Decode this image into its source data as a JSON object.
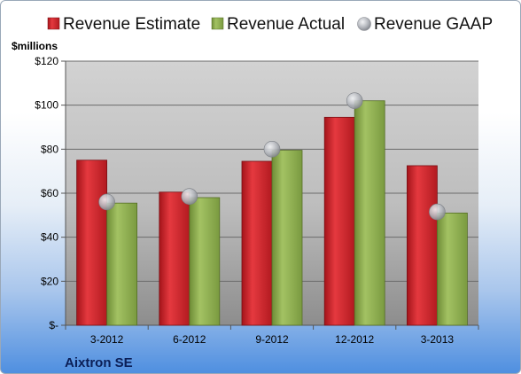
{
  "chart_data": {
    "type": "bar",
    "categories": [
      "3-2012",
      "6-2012",
      "9-2012",
      "12-2012",
      "3-2013"
    ],
    "series": [
      {
        "name": "Revenue Estimate",
        "kind": "bar",
        "color": "#d0232a",
        "values": [
          75,
          60.5,
          74.5,
          94.5,
          72.5
        ]
      },
      {
        "name": "Revenue Actual",
        "kind": "bar",
        "color": "#8fae4e",
        "values": [
          55.5,
          58,
          79.5,
          102,
          51
        ]
      },
      {
        "name": "Revenue GAAP",
        "kind": "marker",
        "color": "#b9bcc2",
        "values": [
          56,
          58.5,
          80,
          102,
          51.5
        ]
      }
    ],
    "unit_label": "$millions",
    "ylim": [
      0,
      120
    ],
    "yticks": [
      0,
      20,
      40,
      60,
      80,
      100,
      120
    ],
    "ytick_labels": [
      "$-",
      "$20",
      "$40",
      "$60",
      "$80",
      "$100",
      "$120"
    ],
    "grid": true,
    "legend_position": "top",
    "company": "Aixtron SE"
  }
}
